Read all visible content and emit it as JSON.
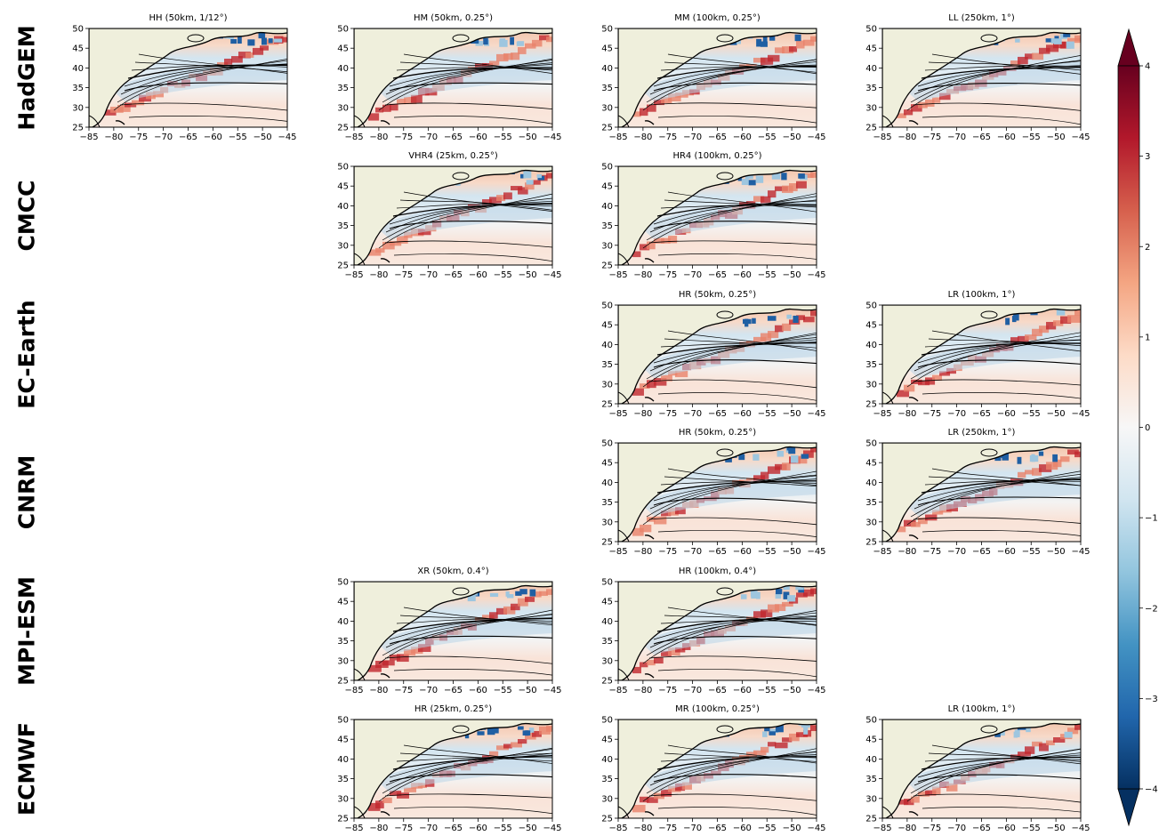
{
  "figure": {
    "rows": [
      {
        "model": "HadGEM",
        "panels": [
          {
            "col": 0,
            "title": "HH (50km, 1/12°)",
            "seed": 3
          },
          {
            "col": 1,
            "title": "HM (50km, 0.25°)",
            "seed": 5
          },
          {
            "col": 2,
            "title": "MM (100km, 0.25°)",
            "seed": 7
          },
          {
            "col": 3,
            "title": "LL (250km, 1°)",
            "seed": 11
          }
        ]
      },
      {
        "model": "CMCC",
        "panels": [
          {
            "col": 1,
            "title": "VHR4 (25km, 0.25°)",
            "seed": 13
          },
          {
            "col": 2,
            "title": "HR4 (100km, 0.25°)",
            "seed": 17
          }
        ]
      },
      {
        "model": "EC-Earth",
        "panels": [
          {
            "col": 2,
            "title": "HR (50km, 0.25°)",
            "seed": 19
          },
          {
            "col": 3,
            "title": "LR (100km, 1°)",
            "seed": 23
          }
        ]
      },
      {
        "model": "CNRM",
        "panels": [
          {
            "col": 2,
            "title": "HR (50km, 0.25°)",
            "seed": 29
          },
          {
            "col": 3,
            "title": "LR (250km, 1°)",
            "seed": 31
          }
        ]
      },
      {
        "model": "MPI-ESM",
        "panels": [
          {
            "col": 1,
            "title": "XR (50km, 0.4°)",
            "seed": 37
          },
          {
            "col": 2,
            "title": "HR (100km, 0.4°)",
            "seed": 41
          }
        ]
      },
      {
        "model": "ECMWF",
        "panels": [
          {
            "col": 1,
            "title": "HR (25km, 0.25°)",
            "seed": 43
          },
          {
            "col": 2,
            "title": "MR (100km, 0.25°)",
            "seed": 47
          },
          {
            "col": 3,
            "title": "LR (100km, 1°)",
            "seed": 53
          }
        ]
      }
    ],
    "lon_ticks": [
      "−85",
      "−80",
      "−75",
      "−70",
      "−65",
      "−60",
      "−55",
      "−50",
      "−45"
    ],
    "lat_ticks": [
      "25",
      "30",
      "35",
      "40",
      "45",
      "50"
    ],
    "lon_range": [
      -85,
      -45
    ],
    "lat_range": [
      25,
      50
    ],
    "colorbar": {
      "ticks": [
        "−4",
        "−3",
        "−2",
        "−1",
        "0",
        "1",
        "2",
        "3",
        "4"
      ],
      "range": [
        -4,
        4
      ],
      "colormap": "RdBu_r",
      "extend": "both"
    },
    "colors": {
      "land": "#efefdc",
      "coast": "#000000"
    }
  }
}
